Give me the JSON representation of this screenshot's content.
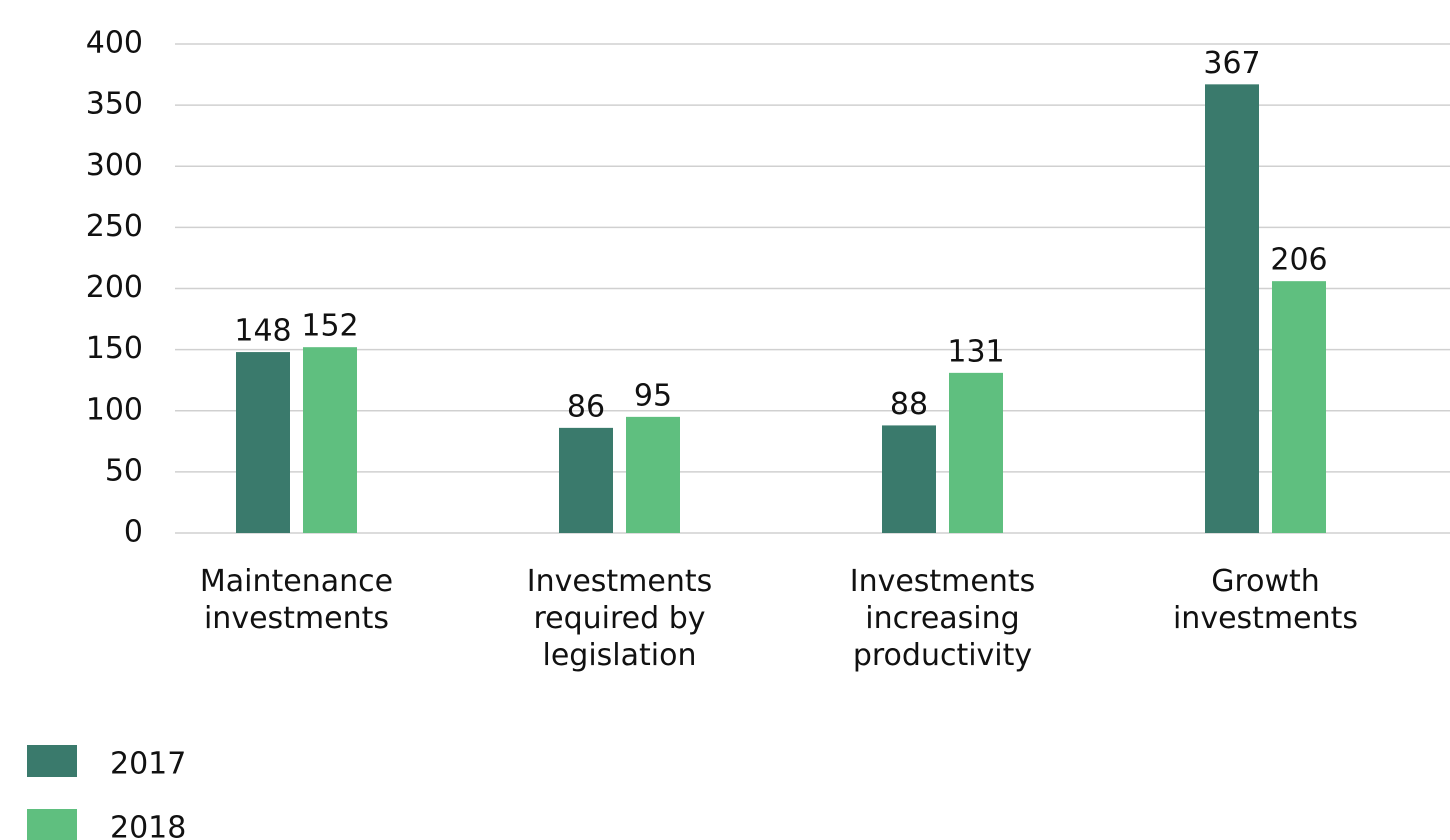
{
  "chart_data": {
    "type": "bar",
    "categories": [
      "Maintenance\ninvestments",
      "Investments\nrequired by\nlegislation",
      "Investments\nincreasing\nproductivity",
      "Growth\ninvestments"
    ],
    "series": [
      {
        "name": "2017",
        "color": "#3a7a6c",
        "values": [
          148,
          86,
          88,
          367
        ]
      },
      {
        "name": "2018",
        "color": "#5fbf7f",
        "values": [
          152,
          95,
          131,
          206
        ]
      }
    ],
    "ylim": [
      0,
      400
    ],
    "yticks": [
      0,
      50,
      100,
      150,
      200,
      250,
      300,
      350,
      400
    ],
    "grid": true,
    "legend": "bottom-left"
  }
}
